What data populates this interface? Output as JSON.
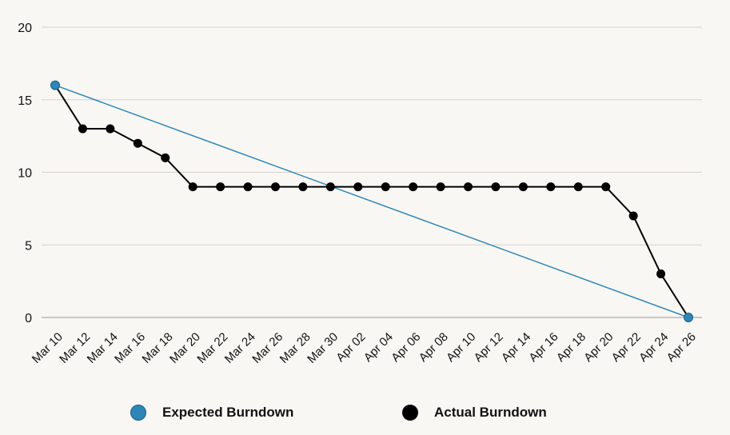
{
  "chart_data": {
    "type": "line",
    "x": [
      "Mar 10",
      "Mar 12",
      "Mar 14",
      "Mar 16",
      "Mar 18",
      "Mar 20",
      "Mar 22",
      "Mar 24",
      "Mar 26",
      "Mar 28",
      "Mar 30",
      "Apr 02",
      "Apr 04",
      "Apr 06",
      "Apr 08",
      "Apr 10",
      "Apr 12",
      "Apr 14",
      "Apr 16",
      "Apr 18",
      "Apr 20",
      "Apr 22",
      "Apr 24",
      "Apr 26"
    ],
    "yticks": [
      "0",
      "5",
      "10",
      "15",
      "20"
    ],
    "ylim": [
      0,
      20
    ],
    "grid": true,
    "legend_position": "bottom",
    "series": [
      {
        "name": "Expected Burndown",
        "color": "#2e86b8",
        "points": [
          {
            "x": "Mar 10",
            "y": 16
          },
          {
            "x": "Apr 26",
            "y": 0
          }
        ]
      },
      {
        "name": "Actual Burndown",
        "color": "#000000",
        "values": [
          16,
          13,
          13,
          12,
          11,
          9,
          9,
          9,
          9,
          9,
          9,
          9,
          9,
          9,
          9,
          9,
          9,
          9,
          9,
          9,
          9,
          7,
          3,
          0
        ]
      }
    ]
  },
  "legend": {
    "items": [
      {
        "label": "Expected Burndown",
        "color": "#2e86b8"
      },
      {
        "label": "Actual Burndown",
        "color": "#000000"
      }
    ]
  }
}
